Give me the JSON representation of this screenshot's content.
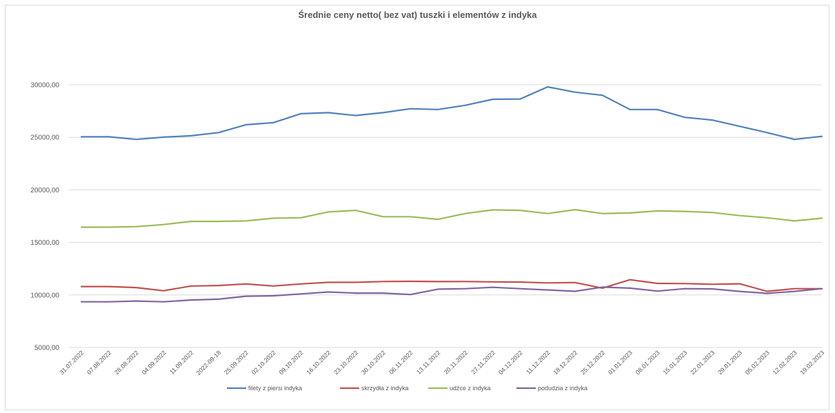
{
  "chart_data": {
    "type": "line",
    "title": "Średnie ceny netto( bez vat) tuszki i elementów z indyka",
    "xlabel": "",
    "ylabel": "",
    "ylim": [
      5000,
      30000
    ],
    "yticks": [
      "5000,00",
      "10000,00",
      "15000,00",
      "20000,00",
      "25000,00",
      "30000,00"
    ],
    "grid": true,
    "legend": "bottom",
    "categories": [
      "31.07.2022",
      "07.08.2022",
      "28.08.2022",
      "04.09.2022",
      "11.09.2022",
      "2022-09-18",
      "25.09.2022",
      "02.10.2022",
      "09.10.2022",
      "16.10.2022",
      "23.10.2022",
      "30.10.2022",
      "06.11.2022",
      "13.11.2022",
      "20.11.2022",
      "27.11.2022",
      "04.12.2022",
      "11.12.2022",
      "18.12.2022",
      "25.12.2022",
      "01.01.2023",
      "08.01.2023",
      "15.01.2023",
      "22.01.2023",
      "29.01.2023",
      "05.02.2023",
      "12.02.2023",
      "19.02.2023"
    ],
    "series": [
      {
        "name": "filety z piersi indyka",
        "color": "#4f81bd",
        "values": [
          25050,
          25050,
          24800,
          25020,
          25150,
          25450,
          26200,
          26400,
          27250,
          27350,
          27080,
          27350,
          27720,
          27650,
          28050,
          28620,
          28650,
          29800,
          29300,
          29000,
          27650,
          27650,
          26900,
          26650,
          26050,
          25450,
          24800,
          25100
        ]
      },
      {
        "name": "skrzydła z indyka",
        "color": "#c0504d",
        "values": [
          10800,
          10800,
          10700,
          10400,
          10850,
          10900,
          11050,
          10850,
          11050,
          11200,
          11200,
          11280,
          11300,
          11270,
          11280,
          11250,
          11230,
          11150,
          11180,
          10650,
          11450,
          11100,
          11080,
          11020,
          11060,
          10350,
          10600,
          10600
        ]
      },
      {
        "name": "udźce z indyka",
        "color": "#9bbb59",
        "values": [
          16450,
          16450,
          16500,
          16700,
          17000,
          17000,
          17050,
          17300,
          17350,
          17900,
          18050,
          17450,
          17450,
          17200,
          17750,
          18100,
          18050,
          17750,
          18120,
          17750,
          17800,
          18000,
          17950,
          17850,
          17550,
          17350,
          17050,
          17300
        ]
      },
      {
        "name": "podudzia z indyka",
        "color": "#8064a2",
        "values": [
          9350,
          9350,
          9420,
          9350,
          9520,
          9600,
          9880,
          9920,
          10100,
          10280,
          10180,
          10180,
          10040,
          10550,
          10600,
          10730,
          10600,
          10480,
          10350,
          10750,
          10650,
          10370,
          10600,
          10580,
          10340,
          10150,
          10340,
          10600
        ]
      }
    ]
  }
}
